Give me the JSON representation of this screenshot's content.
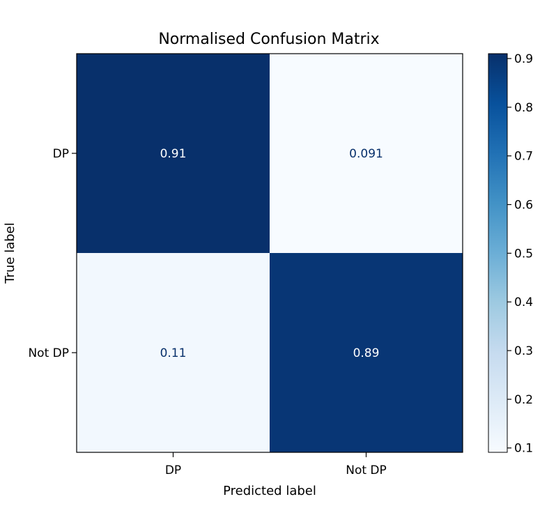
{
  "chart_data": {
    "type": "heatmap",
    "title": "Normalised Confusion Matrix",
    "xlabel": "Predicted label",
    "ylabel": "True label",
    "x_categories": [
      "DP",
      "Not DP"
    ],
    "y_categories": [
      "DP",
      "Not DP"
    ],
    "values": [
      [
        0.91,
        0.091
      ],
      [
        0.11,
        0.89
      ]
    ],
    "value_labels": [
      [
        "0.91",
        "0.091"
      ],
      [
        "0.11",
        "0.89"
      ]
    ],
    "colormap": "Blues",
    "colors": {
      "low": "#f7fbff",
      "high": "#08306b",
      "dark_text": "#08306b",
      "light_text": "#ffffff"
    },
    "colorbar": {
      "range": [
        0.091,
        0.91
      ],
      "ticks": [
        0.1,
        0.2,
        0.3,
        0.4,
        0.5,
        0.6,
        0.7,
        0.8,
        0.9
      ],
      "tick_labels": [
        "0.1",
        "0.2",
        "0.3",
        "0.4",
        "0.5",
        "0.6",
        "0.7",
        "0.8",
        "0.9"
      ]
    },
    "grid": false
  }
}
